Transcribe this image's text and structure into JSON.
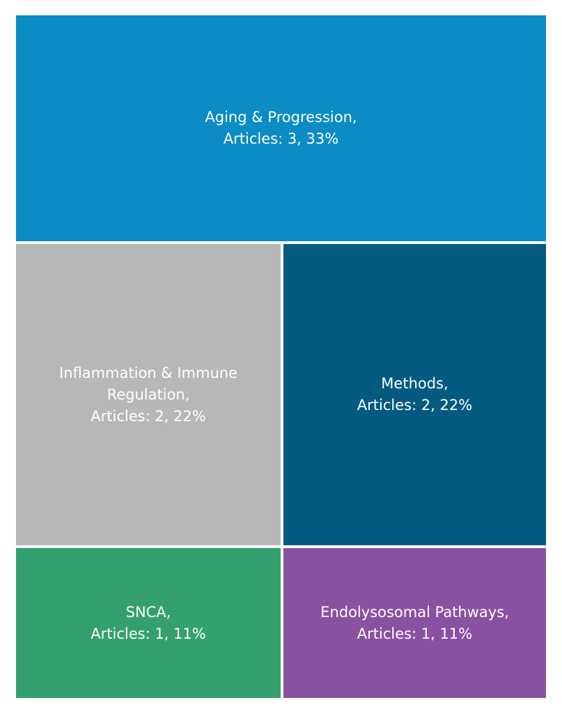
{
  "chart_data": {
    "type": "treemap",
    "items": [
      {
        "name": "Aging & Progression",
        "articles": 3,
        "percent": 33,
        "color": "#0b8cc4",
        "stats_label": "Articles: 3, 33%"
      },
      {
        "name": "Inflammation & Immune Regulation",
        "articles": 2,
        "percent": 22,
        "color": "#b7b7b7",
        "stats_label": "Articles: 2, 22%"
      },
      {
        "name": "Methods",
        "articles": 2,
        "percent": 22,
        "color": "#045a80",
        "stats_label": "Articles: 2, 22%"
      },
      {
        "name": "SNCA",
        "articles": 1,
        "percent": 11,
        "color": "#34a06e",
        "stats_label": "Articles: 1, 11%"
      },
      {
        "name": "Endolysosomal Pathways",
        "articles": 1,
        "percent": 11,
        "color": "#8a51a0",
        "stats_label": "Articles: 1, 11%"
      }
    ]
  }
}
